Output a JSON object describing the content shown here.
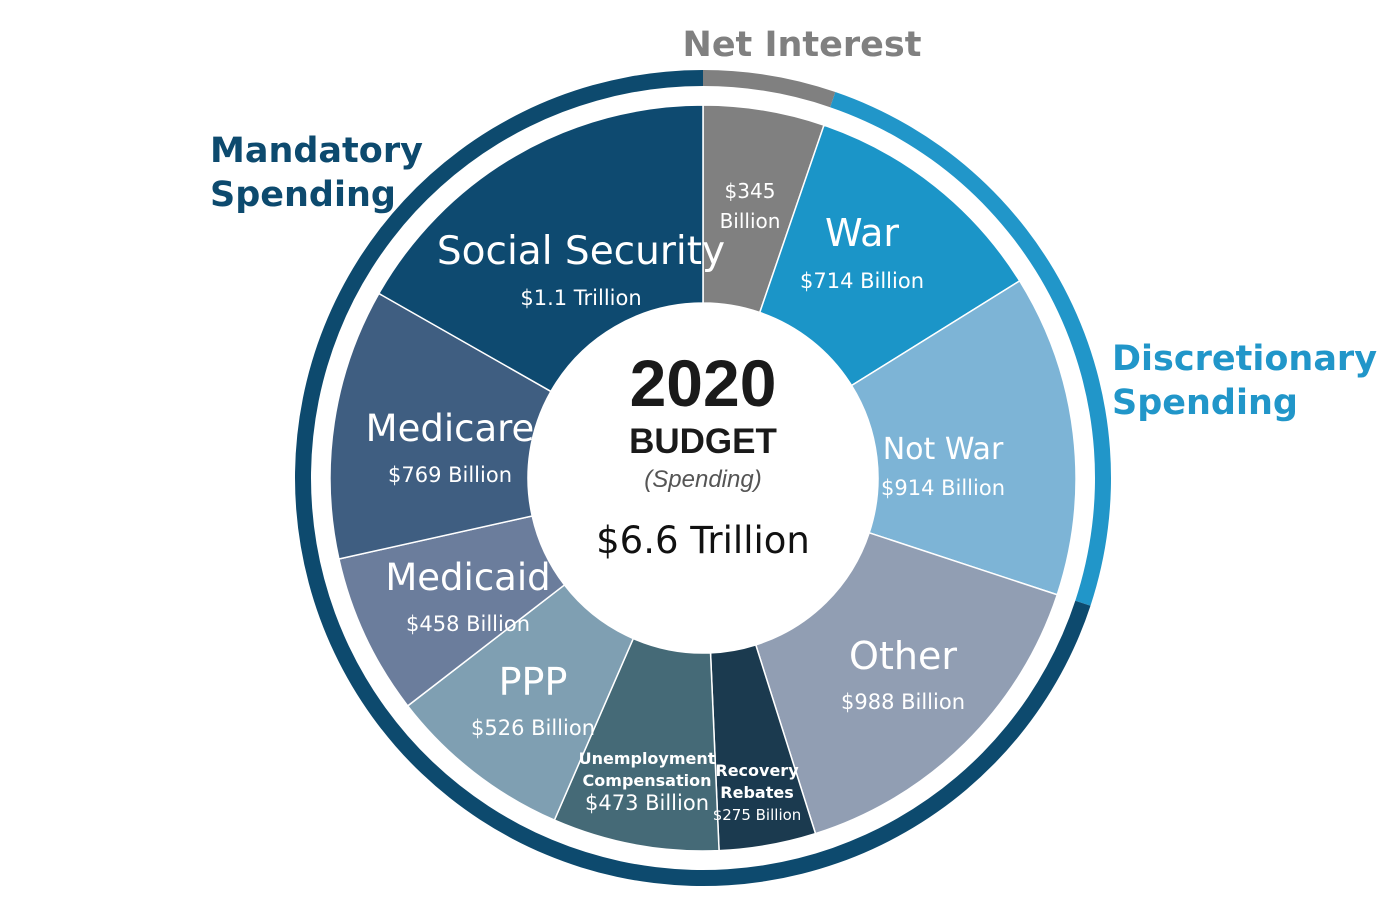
{
  "chart_data": {
    "type": "pie",
    "center": {
      "year": "2020",
      "budget": "BUDGET",
      "subtitle": "(Spending)",
      "total": "$6.6 Trillion"
    },
    "groups": [
      {
        "name_lines": [
          "Net Interest"
        ],
        "color": "#808080",
        "segments": [
          "Net Interest"
        ]
      },
      {
        "name_lines": [
          "Discretionary",
          "Spending"
        ],
        "color": "#2196c9",
        "segments": [
          "War",
          "Not War"
        ]
      },
      {
        "name_lines": [
          "Mandatory",
          "Spending"
        ],
        "color": "#0d4a6e",
        "segments": [
          "Other",
          "Recovery Rebates",
          "Unemployment Compensation",
          "PPP",
          "Medicaid",
          "Medicare",
          "Social Security"
        ]
      }
    ],
    "segments": [
      {
        "name": "Net Interest",
        "name_lines": [],
        "value_lines": [
          "$345",
          "Billion"
        ],
        "value": 345,
        "color": "#808080"
      },
      {
        "name": "War",
        "name_lines": [
          "War"
        ],
        "value_lines": [
          "$714 Billion"
        ],
        "value": 714,
        "color": "#1b95c8"
      },
      {
        "name": "Not War",
        "name_lines": [
          "Not War"
        ],
        "value_lines": [
          "$914 Billion"
        ],
        "value": 914,
        "color": "#7db4d6"
      },
      {
        "name": "Other",
        "name_lines": [
          "Other"
        ],
        "value_lines": [
          "$988 Billion"
        ],
        "value": 988,
        "color": "#919eb3"
      },
      {
        "name": "Recovery Rebates",
        "name_lines": [
          "Recovery",
          "Rebates"
        ],
        "value_lines": [
          "$275 Billion"
        ],
        "value": 275,
        "color": "#1b3a4f"
      },
      {
        "name": "Unemployment Compensation",
        "name_lines": [
          "Unemployment",
          "Compensation"
        ],
        "value_lines": [
          "$473 Billion"
        ],
        "value": 473,
        "color": "#456a77"
      },
      {
        "name": "PPP",
        "name_lines": [
          "PPP"
        ],
        "value_lines": [
          "$526 Billion"
        ],
        "value": 526,
        "color": "#7f9fb2"
      },
      {
        "name": "Medicaid",
        "name_lines": [
          "Medicaid"
        ],
        "value_lines": [
          "$458 Billion"
        ],
        "value": 458,
        "color": "#6b7d9c"
      },
      {
        "name": "Medicare",
        "name_lines": [
          "Medicare"
        ],
        "value_lines": [
          "$769 Billion"
        ],
        "value": 769,
        "color": "#3f5e81"
      },
      {
        "name": "Social Security",
        "name_lines": [
          "Social Security"
        ],
        "value_lines": [
          "$1.1 Trillion"
        ],
        "value": 1100,
        "color": "#0e4a70"
      }
    ]
  }
}
